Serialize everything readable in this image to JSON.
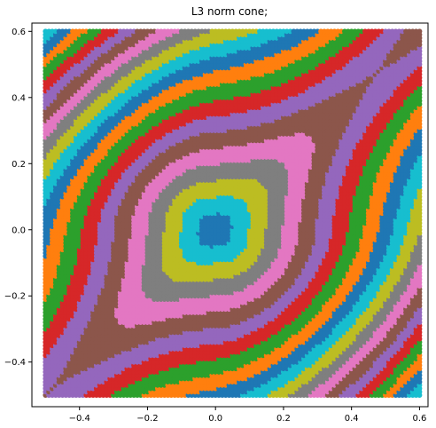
{
  "chart_data": {
    "type": "scatter",
    "title": "L3 norm cone;",
    "xlabel": "",
    "ylabel": "",
    "xlim": [
      -0.54,
      0.625
    ],
    "ylim": [
      -0.535,
      0.625
    ],
    "xticks": [
      -0.4,
      -0.2,
      0.0,
      0.2,
      0.4,
      0.6
    ],
    "yticks": [
      -0.4,
      -0.2,
      0.0,
      0.2,
      0.4,
      0.6
    ],
    "xtick_labels": [
      "−0.4",
      "−0.2",
      "0.0",
      "0.2",
      "0.4",
      "0.6"
    ],
    "ytick_labels": [
      "−0.4",
      "−0.2",
      "0.0",
      "0.2",
      "0.4",
      "0.6"
    ],
    "grid": false,
    "legend": "none",
    "sampling": {
      "x_range": [
        -0.5,
        0.6
      ],
      "y_range": [
        -0.5,
        0.6
      ],
      "step": 0.01
    },
    "cone": {
      "norm_power": 3,
      "apex": [
        0.0,
        0.0
      ],
      "level_step": 0.05,
      "description": "Each grid point colored by contour band of the L3 norm cone value; points along the anti-diagonal valley where the bands interleave."
    },
    "band_colors": [
      "#1f77b4",
      "#17becf",
      "#bcbd22",
      "#7f7f7f",
      "#e377c2",
      "#8c564b",
      "#9467bd",
      "#d62728",
      "#2ca02c",
      "#ff7f0e"
    ]
  }
}
